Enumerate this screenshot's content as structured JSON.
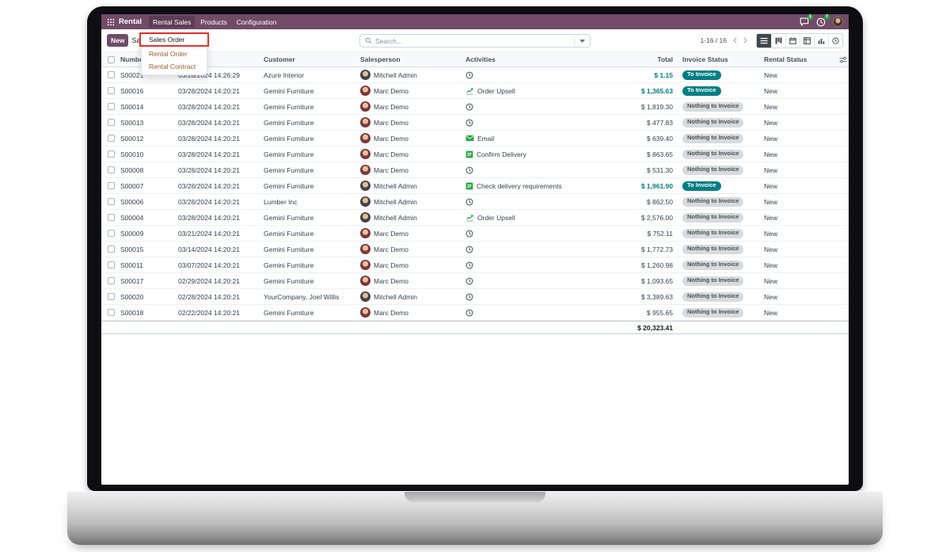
{
  "colors": {
    "brand_purple": "#714B67",
    "status_teal": "#017E84",
    "badge_gray": "#D8DADD",
    "notification_green": "#28A745",
    "annotation_red": "#E8312A"
  },
  "topbar": {
    "brand": "Rental",
    "menus": [
      "Rental Sales",
      "Products",
      "Configuration"
    ],
    "active_menu": "Rental Sales",
    "systray": {
      "icons": [
        "messages-icon",
        "activities-icon",
        "user-avatar"
      ],
      "messages_badge": "1",
      "activities_badge": "7"
    }
  },
  "controlbar": {
    "new_label": "New",
    "breadcrumb": "Sales",
    "search_placeholder": "Search...",
    "pager": "1-16 / 16",
    "view_switcher": [
      "list-view",
      "kanban-view",
      "calendar-view",
      "pivot-view",
      "graph-view",
      "activity-view"
    ],
    "active_view": "list-view"
  },
  "dropdown": {
    "items": [
      "Sales Order",
      "Rental Order",
      "Rental Contract"
    ],
    "highlighted_item": "Sales Order"
  },
  "table": {
    "headers": {
      "number": "Number",
      "date": "",
      "customer": "Customer",
      "salesperson": "Salesperson",
      "activities": "Activities",
      "total": "Total",
      "invoice_status": "Invoice Status",
      "rental_status": "Rental Status"
    },
    "rows": [
      {
        "number": "S00021",
        "date": "03/28/2024 14:26:29",
        "customer": "Azure Interior",
        "salesperson": "Mitchell Admin",
        "activity_icon": "clock-icon",
        "activity_label": "",
        "total": "$ 1.15",
        "total_teal": true,
        "invoice_status": "To Invoice",
        "rental_status": "New"
      },
      {
        "number": "S00016",
        "date": "03/28/2024 14:20:21",
        "customer": "Gemini Furniture",
        "salesperson": "Marc Demo",
        "activity_icon": "chart-icon",
        "activity_label": "Order Upsell",
        "total": "$ 1,365.63",
        "total_teal": true,
        "invoice_status": "To Invoice",
        "rental_status": "New"
      },
      {
        "number": "S00014",
        "date": "03/28/2024 14:20:21",
        "customer": "Gemini Furniture",
        "salesperson": "Marc Demo",
        "activity_icon": "clock-icon",
        "activity_label": "",
        "total": "$ 1,819.30",
        "total_teal": false,
        "invoice_status": "Nothing to Invoice",
        "rental_status": "New"
      },
      {
        "number": "S00013",
        "date": "03/28/2024 14:20:21",
        "customer": "Gemini Furniture",
        "salesperson": "Marc Demo",
        "activity_icon": "clock-icon",
        "activity_label": "",
        "total": "$ 477.83",
        "total_teal": false,
        "invoice_status": "Nothing to Invoice",
        "rental_status": "New"
      },
      {
        "number": "S00012",
        "date": "03/28/2024 14:20:21",
        "customer": "Gemini Furniture",
        "salesperson": "Marc Demo",
        "activity_icon": "email-icon",
        "activity_label": "Email",
        "total": "$ 639.40",
        "total_teal": false,
        "invoice_status": "Nothing to Invoice",
        "rental_status": "New"
      },
      {
        "number": "S00010",
        "date": "03/28/2024 14:20:21",
        "customer": "Gemini Furniture",
        "salesperson": "Marc Demo",
        "activity_icon": "tasks-icon",
        "activity_label": "Confirm Delivery",
        "total": "$ 863.65",
        "total_teal": false,
        "invoice_status": "Nothing to Invoice",
        "rental_status": "New"
      },
      {
        "number": "S00008",
        "date": "03/28/2024 14:20:21",
        "customer": "Gemini Furniture",
        "salesperson": "Marc Demo",
        "activity_icon": "clock-icon",
        "activity_label": "",
        "total": "$ 531.30",
        "total_teal": false,
        "invoice_status": "Nothing to Invoice",
        "rental_status": "New"
      },
      {
        "number": "S00007",
        "date": "03/28/2024 14:20:21",
        "customer": "Gemini Furniture",
        "salesperson": "Mitchell Admin",
        "activity_icon": "tasks-icon",
        "activity_label": "Check delivery requirements",
        "total": "$ 1,961.90",
        "total_teal": true,
        "invoice_status": "To Invoice",
        "rental_status": "New"
      },
      {
        "number": "S00006",
        "date": "03/28/2024 14:20:21",
        "customer": "Lumber Inc",
        "salesperson": "Mitchell Admin",
        "activity_icon": "clock-icon",
        "activity_label": "",
        "total": "$ 862.50",
        "total_teal": false,
        "invoice_status": "Nothing to Invoice",
        "rental_status": "New"
      },
      {
        "number": "S00004",
        "date": "03/28/2024 14:20:21",
        "customer": "Gemini Furniture",
        "salesperson": "Mitchell Admin",
        "activity_icon": "chart-icon",
        "activity_label": "Order Upsell",
        "total": "$ 2,576.00",
        "total_teal": false,
        "invoice_status": "Nothing to Invoice",
        "rental_status": "New"
      },
      {
        "number": "S00009",
        "date": "03/21/2024 14:20:21",
        "customer": "Gemini Furniture",
        "salesperson": "Marc Demo",
        "activity_icon": "clock-icon",
        "activity_label": "",
        "total": "$ 752.11",
        "total_teal": false,
        "invoice_status": "Nothing to Invoice",
        "rental_status": "New"
      },
      {
        "number": "S00015",
        "date": "03/14/2024 14:20:21",
        "customer": "Gemini Furniture",
        "salesperson": "Marc Demo",
        "activity_icon": "clock-icon",
        "activity_label": "",
        "total": "$ 1,772.73",
        "total_teal": false,
        "invoice_status": "Nothing to Invoice",
        "rental_status": "New"
      },
      {
        "number": "S00011",
        "date": "03/07/2024 14:20:21",
        "customer": "Gemini Furniture",
        "salesperson": "Marc Demo",
        "activity_icon": "clock-icon",
        "activity_label": "",
        "total": "$ 1,260.98",
        "total_teal": false,
        "invoice_status": "Nothing to Invoice",
        "rental_status": "New"
      },
      {
        "number": "S00017",
        "date": "02/29/2024 14:20:21",
        "customer": "Gemini Furniture",
        "salesperson": "Marc Demo",
        "activity_icon": "clock-icon",
        "activity_label": "",
        "total": "$ 1,093.65",
        "total_teal": false,
        "invoice_status": "Nothing to Invoice",
        "rental_status": "New"
      },
      {
        "number": "S00020",
        "date": "02/28/2024 14:20:21",
        "customer": "YourCompany, Joel Willis",
        "salesperson": "Mitchell Admin",
        "activity_icon": "clock-icon",
        "activity_label": "",
        "total": "$ 3,389.63",
        "total_teal": false,
        "invoice_status": "Nothing to Invoice",
        "rental_status": "New"
      },
      {
        "number": "S00018",
        "date": "02/22/2024 14:20:21",
        "customer": "Gemini Furniture",
        "salesperson": "Marc Demo",
        "activity_icon": "clock-icon",
        "activity_label": "",
        "total": "$ 955.65",
        "total_teal": false,
        "invoice_status": "Nothing to Invoice",
        "rental_status": "New"
      }
    ],
    "footer_total": "$ 20,323.41"
  }
}
